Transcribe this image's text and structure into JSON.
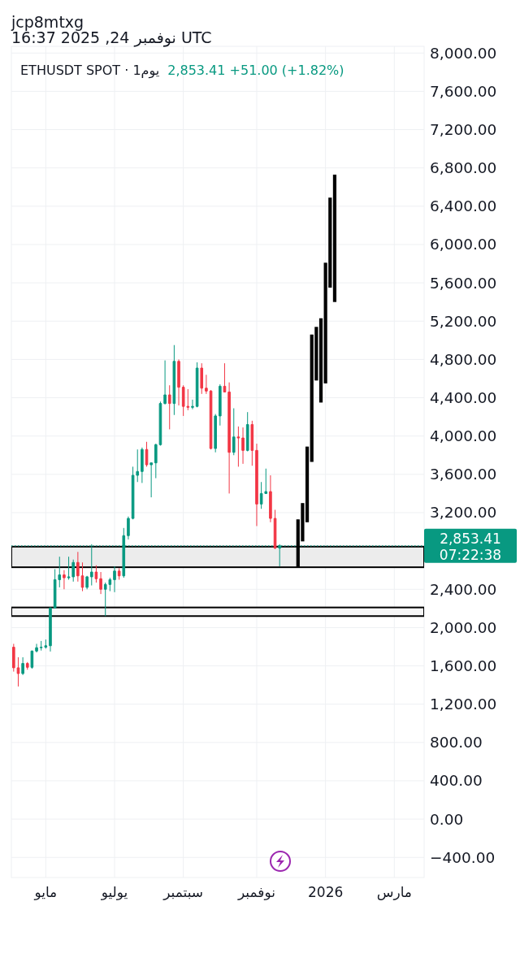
{
  "chart_data": {
    "type": "candlestick",
    "title": "ETHUSDT SPOT · 1يوم",
    "subtitle": "2,853.41 +51.00 (+1.82%)",
    "annotations": [
      "jcp8mtxg",
      "16:37 2025 ,24 نوفمبر UTC",
      "07:22:38"
    ],
    "categories": [
      null,
      null,
      null,
      null,
      null,
      null,
      null,
      "مايو",
      null,
      null,
      null,
      null,
      null,
      null,
      null,
      null,
      null,
      null,
      null,
      null,
      null,
      null,
      "يوليو",
      null,
      null,
      null,
      null,
      null,
      null,
      null,
      null,
      null,
      null,
      null,
      null,
      null,
      null,
      "سبتمبر",
      null,
      null,
      null,
      null,
      null,
      null,
      null,
      null,
      null,
      null,
      null,
      null,
      null,
      null,
      null,
      "نوفمبر",
      null,
      null,
      null,
      null,
      null,
      null,
      null,
      null,
      null,
      null,
      null,
      null,
      null,
      null,
      "2026",
      null,
      null,
      null,
      null,
      null,
      null,
      null,
      null,
      null,
      null,
      null,
      null,
      null,
      null,
      "مارس",
      null,
      null,
      null,
      null,
      null,
      null
    ],
    "ylim": [
      -610,
      8070
    ],
    "yticks": [
      {
        "value": -400,
        "label": "−400.00"
      },
      {
        "value": 0,
        "label": "0.00"
      },
      {
        "value": 400,
        "label": "400.00"
      },
      {
        "value": 800,
        "label": "800.00"
      },
      {
        "value": 1200,
        "label": "1,200.00"
      },
      {
        "value": 1600,
        "label": "1,600.00"
      },
      {
        "value": 2000,
        "label": "2,000.00"
      },
      {
        "value": 2400,
        "label": "2,400.00"
      },
      {
        "value": 3200,
        "label": "3,200.00"
      },
      {
        "value": 3600,
        "label": "3,600.00"
      },
      {
        "value": 4000,
        "label": "4,000.00"
      },
      {
        "value": 4400,
        "label": "4,400.00"
      },
      {
        "value": 4800,
        "label": "4,800.00"
      },
      {
        "value": 5200,
        "label": "5,200.00"
      },
      {
        "value": 5600,
        "label": "5,600.00"
      },
      {
        "value": 6000,
        "label": "6,000.00"
      },
      {
        "value": 6400,
        "label": "6,400.00"
      },
      {
        "value": 6800,
        "label": "6,800.00"
      },
      {
        "value": 7200,
        "label": "7,200.00"
      },
      {
        "value": 7600,
        "label": "7,600.00"
      },
      {
        "value": 8000,
        "label": "8,000.00"
      }
    ],
    "grid": true,
    "series": [
      {
        "ohlc": [
          [
            1795,
            1830,
            1540,
            1580
          ],
          [
            1580,
            1690,
            1385,
            1520
          ],
          [
            1520,
            1690,
            1505,
            1625
          ],
          [
            1625,
            1640,
            1560,
            1585
          ],
          [
            1585,
            1760,
            1570,
            1755
          ],
          [
            1755,
            1830,
            1740,
            1790
          ],
          [
            1790,
            1860,
            1760,
            1795
          ],
          [
            1795,
            1875,
            1780,
            1810
          ],
          [
            1810,
            2210,
            1750,
            2205
          ],
          [
            2205,
            2610,
            2200,
            2500
          ],
          [
            2500,
            2740,
            2420,
            2550
          ],
          [
            2550,
            2600,
            2400,
            2520
          ],
          [
            2520,
            2740,
            2500,
            2530
          ],
          [
            2530,
            2710,
            2480,
            2680
          ],
          [
            2680,
            2790,
            2480,
            2540
          ],
          [
            2540,
            2680,
            2380,
            2420
          ],
          [
            2420,
            2540,
            2400,
            2530
          ],
          [
            2530,
            2870,
            2440,
            2580
          ],
          [
            2580,
            2650,
            2470,
            2510
          ],
          [
            2510,
            2580,
            2350,
            2400
          ],
          [
            2400,
            2470,
            2120,
            2450
          ],
          [
            2450,
            2520,
            2380,
            2500
          ],
          [
            2500,
            2640,
            2370,
            2590
          ],
          [
            2590,
            2620,
            2500,
            2540
          ],
          [
            2540,
            3040,
            2520,
            2960
          ],
          [
            2960,
            3160,
            2920,
            3140
          ],
          [
            3140,
            3680,
            3130,
            3590
          ],
          [
            3590,
            3860,
            3520,
            3630
          ],
          [
            3630,
            3880,
            3510,
            3860
          ],
          [
            3860,
            3940,
            3680,
            3700
          ],
          [
            3700,
            3720,
            3360,
            3720
          ],
          [
            3720,
            3920,
            3560,
            3910
          ],
          [
            3910,
            4360,
            3900,
            4340
          ],
          [
            4340,
            4790,
            4330,
            4430
          ],
          [
            4430,
            4530,
            4070,
            4340
          ],
          [
            4340,
            4950,
            4220,
            4780
          ],
          [
            4780,
            4800,
            4320,
            4510
          ],
          [
            4510,
            4530,
            4210,
            4310
          ],
          [
            4310,
            4490,
            4270,
            4300
          ],
          [
            4300,
            4380,
            4280,
            4310
          ],
          [
            4310,
            4770,
            4300,
            4710
          ],
          [
            4710,
            4760,
            4440,
            4500
          ],
          [
            4500,
            4640,
            4440,
            4470
          ],
          [
            4470,
            4480,
            3860,
            3870
          ],
          [
            3870,
            4230,
            3830,
            4210
          ],
          [
            4210,
            4540,
            4110,
            4520
          ],
          [
            4520,
            4760,
            4460,
            4460
          ],
          [
            4460,
            4560,
            3400,
            3830
          ],
          [
            3830,
            4290,
            3800,
            3990
          ],
          [
            3990,
            4100,
            3680,
            3980
          ],
          [
            3980,
            4090,
            3710,
            3850
          ],
          [
            3850,
            4250,
            3840,
            4120
          ],
          [
            4120,
            4160,
            3690,
            3850
          ],
          [
            3850,
            3920,
            3060,
            3290
          ],
          [
            3290,
            3520,
            3240,
            3400
          ],
          [
            3400,
            3660,
            3400,
            3420
          ],
          [
            3420,
            3590,
            3100,
            3140
          ],
          [
            3140,
            3230,
            2820,
            2830
          ],
          [
            2830,
            2870,
            2640,
            2853.41
          ],
          null,
          null,
          null,
          null,
          null,
          null,
          null,
          null,
          null,
          null,
          null,
          null,
          null,
          null,
          null,
          null,
          null,
          null,
          null,
          null,
          null,
          null,
          null,
          null,
          null,
          null,
          null,
          null,
          null,
          null,
          null
        ],
        "colors": [
          "#f23645",
          "#f23645",
          "#089981",
          "#f23645",
          "#089981",
          "#089981",
          "#089981",
          "#089981",
          "#089981",
          "#089981",
          "#089981",
          "#f23645",
          "#089981",
          "#089981",
          "#f23645",
          "#f23645",
          "#089981",
          "#089981",
          "#f23645",
          "#f23645",
          "#089981",
          "#089981",
          "#089981",
          "#f23645",
          "#089981",
          "#089981",
          "#089981",
          "#089981",
          "#089981",
          "#f23645",
          "#089981",
          "#089981",
          "#089981",
          "#089981",
          "#f23645",
          "#089981",
          "#f23645",
          "#f23645",
          "#f23645",
          "#089981",
          "#089981",
          "#f23645",
          "#f23645",
          "#f23645",
          "#089981",
          "#089981",
          "#f23645",
          "#f23645",
          "#089981",
          "#f23645",
          "#f23645",
          "#089981",
          "#f23645",
          "#f23645",
          "#089981",
          "#089981",
          "#f23645",
          "#f23645",
          "#089981",
          null,
          null,
          null,
          null,
          null,
          null,
          null,
          null,
          null,
          null,
          null,
          null,
          null,
          null,
          null,
          null,
          null,
          null,
          null,
          null,
          null,
          null,
          null,
          null,
          null,
          null,
          null,
          null,
          null,
          null,
          null
        ]
      },
      {
        "type": "bar",
        "color": "#000000",
        "base": [
          null,
          null,
          null,
          null,
          null,
          null,
          null,
          null,
          null,
          null,
          null,
          null,
          null,
          null,
          null,
          null,
          null,
          null,
          null,
          null,
          null,
          null,
          null,
          null,
          null,
          null,
          null,
          null,
          null,
          null,
          null,
          null,
          null,
          null,
          null,
          null,
          null,
          null,
          null,
          null,
          null,
          null,
          null,
          null,
          null,
          null,
          null,
          null,
          null,
          null,
          null,
          null,
          null,
          null,
          null,
          null,
          null,
          null,
          null,
          null,
          null,
          null,
          2630,
          2900,
          3100,
          3730,
          4580,
          4350,
          4550,
          5550,
          5400,
          null,
          null,
          null,
          null,
          null,
          null,
          null,
          null,
          null,
          null,
          null,
          null,
          null,
          null,
          null,
          null,
          null,
          null,
          null
        ],
        "values": [
          null,
          null,
          null,
          null,
          null,
          null,
          null,
          null,
          null,
          null,
          null,
          null,
          null,
          null,
          null,
          null,
          null,
          null,
          null,
          null,
          null,
          null,
          null,
          null,
          null,
          null,
          null,
          null,
          null,
          null,
          null,
          null,
          null,
          null,
          null,
          null,
          null,
          null,
          null,
          null,
          null,
          null,
          null,
          null,
          null,
          null,
          null,
          null,
          null,
          null,
          null,
          null,
          null,
          null,
          null,
          null,
          null,
          null,
          null,
          null,
          null,
          null,
          500,
          400,
          790,
          1330,
          560,
          880,
          1260,
          940,
          1330,
          null,
          null,
          null,
          null,
          null,
          null,
          null,
          null,
          null,
          null,
          null,
          null,
          null,
          null,
          null,
          null,
          null,
          null,
          null
        ]
      }
    ],
    "bands": [
      {
        "axis": "y",
        "from": 2630,
        "to": 2845,
        "color": "#ececec"
      },
      {
        "axis": "y",
        "from": 2120,
        "to": 2210,
        "color": "#f6f6f6"
      }
    ],
    "ref_lines": [
      {
        "axis": "y",
        "value": 2853.41,
        "label": "2,853.41",
        "color": "#089981",
        "line_style": "dotted"
      }
    ]
  }
}
